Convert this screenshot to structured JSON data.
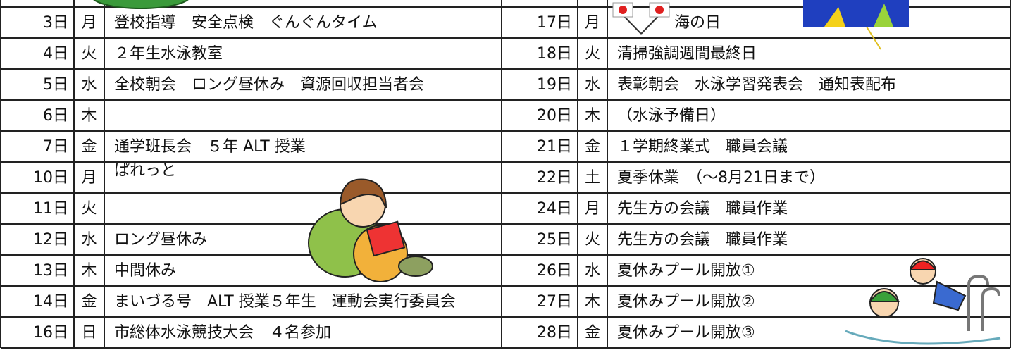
{
  "left": [
    {
      "day": "3日",
      "weekday": "月",
      "event": "登校指導　安全点検　ぐんぐんタイム"
    },
    {
      "day": "4日",
      "weekday": "火",
      "event": "２年生水泳教室"
    },
    {
      "day": "5日",
      "weekday": "水",
      "event": "全校朝会　ロング昼休み　資源回収担当者会"
    },
    {
      "day": "6日",
      "weekday": "木"
    },
    {
      "day": "7日",
      "weekday": "金",
      "event": "通学班長会　５年 ALT 授業"
    },
    {
      "day": "10日",
      "weekday": "月",
      "event": "ぱれっと"
    },
    {
      "day": "11日",
      "weekday": "火"
    },
    {
      "day": "12日",
      "weekday": "水",
      "event": "ロング昼休み"
    },
    {
      "day": "13日",
      "weekday": "木",
      "event": "中間休み"
    },
    {
      "day": "14日",
      "weekday": "金",
      "event": "まいづる号　ALT 授業５年生　運動会実行委員会"
    },
    {
      "day": "16日",
      "weekday": "日",
      "event": "市総体水泳競技大会　４名参加"
    }
  ],
  "right": [
    {
      "day": "17日",
      "weekday": "月",
      "event": "海の日"
    },
    {
      "day": "18日",
      "weekday": "火",
      "event": "清掃強調週間最終日"
    },
    {
      "day": "19日",
      "weekday": "水",
      "event": "表彰朝会　水泳学習発表会　通知表配布"
    },
    {
      "day": "20日",
      "weekday": "木",
      "event": "（水泳予備日）"
    },
    {
      "day": "21日",
      "weekday": "金",
      "event": "１学期終業式　職員会議"
    },
    {
      "day": "22日",
      "weekday": "土",
      "event": "夏季休業　（～8月21日まで）"
    },
    {
      "day": "24日",
      "weekday": "月",
      "event": "先生方の会議　職員作業"
    },
    {
      "day": "25日",
      "weekday": "火",
      "event": "先生方の会議　職員作業"
    },
    {
      "day": "26日",
      "weekday": "水",
      "event": "夏休みプール開放①"
    },
    {
      "day": "27日",
      "weekday": "木",
      "event": "夏休みプール開放②"
    },
    {
      "day": "28日",
      "weekday": "金",
      "event": "夏休みプール開放③"
    }
  ]
}
